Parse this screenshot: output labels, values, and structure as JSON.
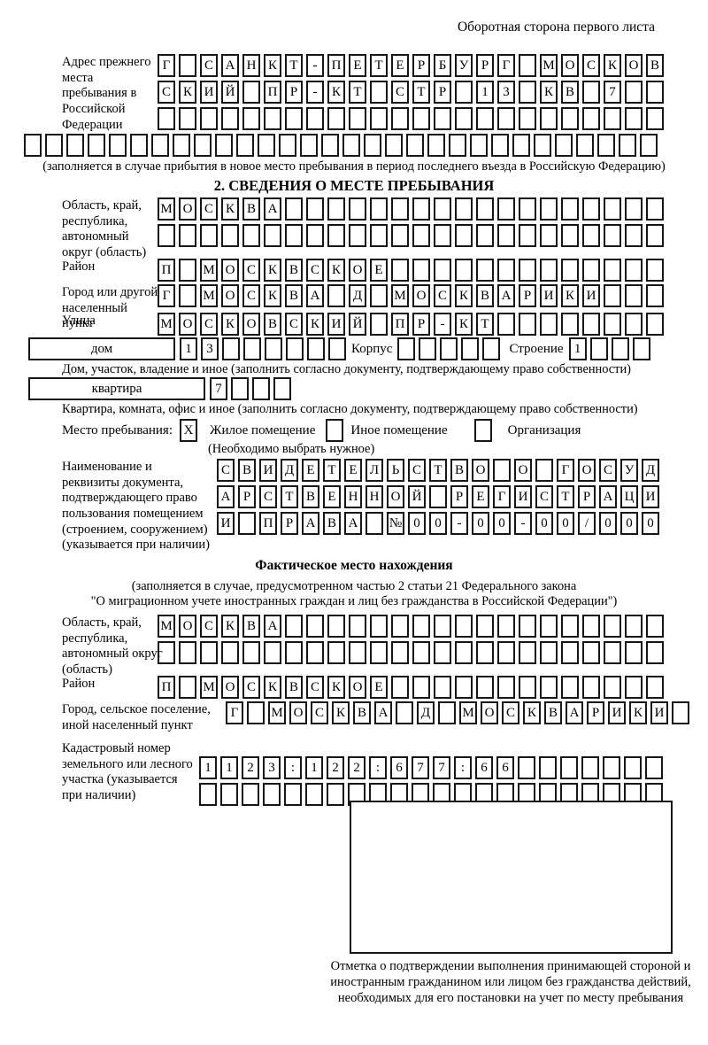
{
  "page_note": "Оборотная сторона первого листа",
  "prev_address": {
    "label": "Адрес прежнего места пребывания в Российской Федерации",
    "rows": [
      {
        "cells": "Г САНКТ-ПЕТЕРБУРГ МОСКОВ",
        "count": 24
      },
      {
        "cells": "СКИЙ ПР-КТ СТР 13 КВ 7",
        "count": 24
      },
      {
        "cells": "",
        "count": 24
      },
      {
        "cells": "",
        "count": 30
      }
    ],
    "note": "(заполняется в случае прибытия в новое место пребывания в период последнего въезда в Российскую Федерацию)"
  },
  "section2": {
    "title": "2. СВЕДЕНИЯ О МЕСТЕ ПРЕБЫВАНИЯ",
    "oblast": {
      "label": "Область, край, республика, автономный округ (область)",
      "rows": [
        {
          "cells": "МОСКВА",
          "count": 24
        },
        {
          "cells": "",
          "count": 24
        }
      ]
    },
    "rayon": {
      "label": "Район",
      "row": {
        "cells": "П МОСКВСКОЕ",
        "count": 24
      }
    },
    "gorod": {
      "label": "Город или другой населенный пункт",
      "row": {
        "cells": "Г МОСКВА Д МОСКВАРИКИ",
        "count": 24
      }
    },
    "ulitsa": {
      "label": "Улица",
      "row": {
        "cells": "МОСКОВСКИЙ ПР-КТ",
        "count": 24
      }
    },
    "dom": {
      "box_label": "дом",
      "cells": {
        "cells": "13",
        "count": 8
      },
      "korpus_label": "Корпус",
      "korpus_cells": {
        "cells": "",
        "count": 5
      },
      "stroenie_label": "Строение",
      "stroenie_cells": {
        "cells": "1",
        "count": 4
      },
      "note": "Дом, участок, владение и иное (заполнить согласно документу, подтверждающему право собственности)"
    },
    "kvartira": {
      "box_label": "квартира",
      "cells": {
        "cells": "7",
        "count": 4
      },
      "note": "Квартира, комната, офис и иное (заполнить согласно документу, подтверждающему право собственности)"
    },
    "mesto": {
      "label": "Место пребывания:",
      "options": [
        {
          "label": "Жилое помещение",
          "mark": "X"
        },
        {
          "label": "Иное помещение",
          "mark": ""
        },
        {
          "label": "Организация",
          "mark": ""
        }
      ],
      "note": "(Необходимо выбрать нужное)"
    },
    "document": {
      "label": "Наименование и реквизиты документа, подтверждающего право пользования помещением (строением, сооружением) (указывается при наличии)",
      "rows": [
        {
          "cells": "СВИДЕТЕЛЬСТВО О ГОСУД",
          "count": 21
        },
        {
          "cells": "АРСТВЕННОЙ РЕГИСТРАЦИ",
          "count": 21
        },
        {
          "cells": "И ПРАВА №00-00-00/000",
          "count": 21
        }
      ]
    }
  },
  "fact": {
    "title": "Фактическое место нахождения",
    "note1": "(заполняется в случае, предусмотренном частью 2 статьи 21 Федерального закона",
    "note2": "\"О миграционном учете иностранных граждан и лиц без гражданства в Российской Федерации\")",
    "oblast": {
      "label": "Область, край, республика, автономный округ (область)",
      "rows": [
        {
          "cells": "МОСКВА",
          "count": 24
        },
        {
          "cells": "",
          "count": 24
        }
      ]
    },
    "rayon": {
      "label": "Район",
      "row": {
        "cells": "П МОСКВСКОЕ",
        "count": 24
      }
    },
    "gorod": {
      "label": "Город, сельское поселение, иной населенный пункт",
      "row": {
        "cells": "Г МОСКВА Д МОСКВАРИКИ",
        "count": 22
      }
    },
    "kadastr": {
      "label": "Кадастровый номер земельного или лесного участка (указывается при наличии)",
      "rows": [
        {
          "cells": "1123:122:677:66",
          "count": 22
        },
        {
          "cells": "",
          "count": 22
        }
      ]
    }
  },
  "stamp": {
    "caption": "Отметка о подтверждении выполнения принимающей стороной и иностранным гражданином или лицом без гражданства действий, необходимых для его постановки на учет по месту пребывания"
  }
}
